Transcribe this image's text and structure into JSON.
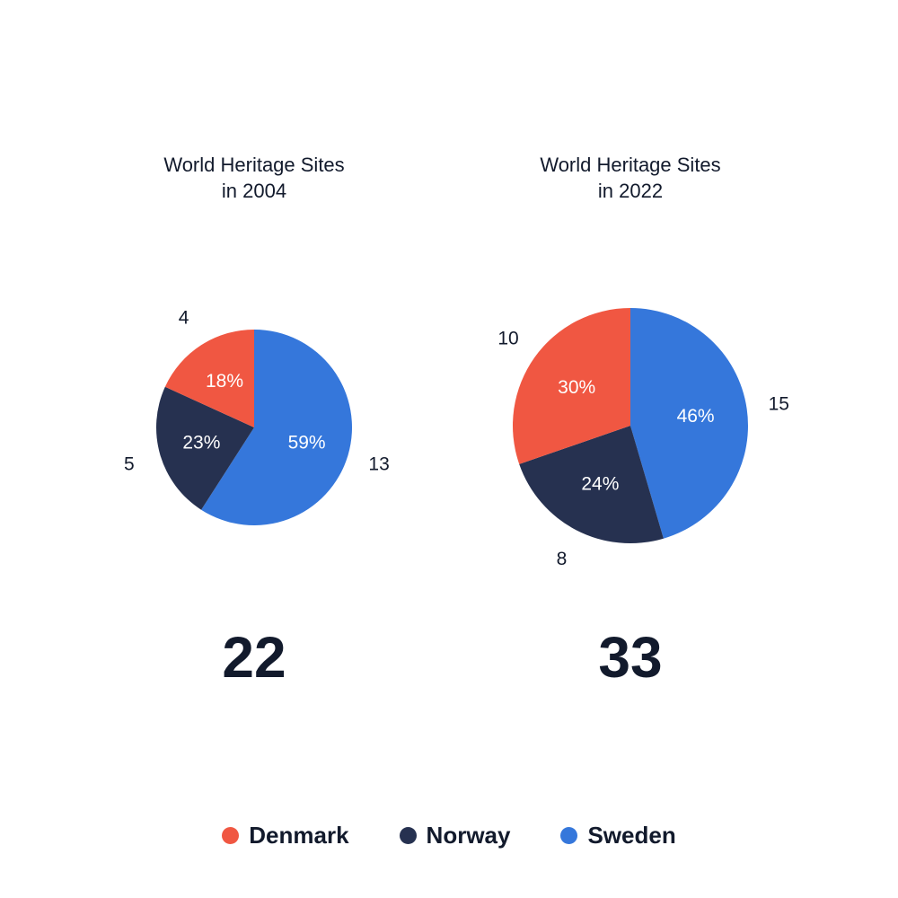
{
  "chart_data": [
    {
      "type": "pie",
      "title_lines": [
        "World Heritage Sites",
        "in 2004"
      ],
      "total": "22",
      "categories": [
        "Denmark",
        "Norway",
        "Sweden"
      ],
      "values": [
        4,
        5,
        13
      ],
      "percent_labels": [
        "18%",
        "23%",
        "59%"
      ]
    },
    {
      "type": "pie",
      "title_lines": [
        "World Heritage Sites",
        "in 2022"
      ],
      "total": "33",
      "categories": [
        "Denmark",
        "Norway",
        "Sweden"
      ],
      "values": [
        10,
        8,
        15
      ],
      "percent_labels": [
        "30%",
        "24%",
        "46%"
      ]
    }
  ],
  "legend": [
    {
      "label": "Denmark",
      "color": "#f05742"
    },
    {
      "label": "Norway",
      "color": "#263150"
    },
    {
      "label": "Sweden",
      "color": "#3577db"
    }
  ]
}
